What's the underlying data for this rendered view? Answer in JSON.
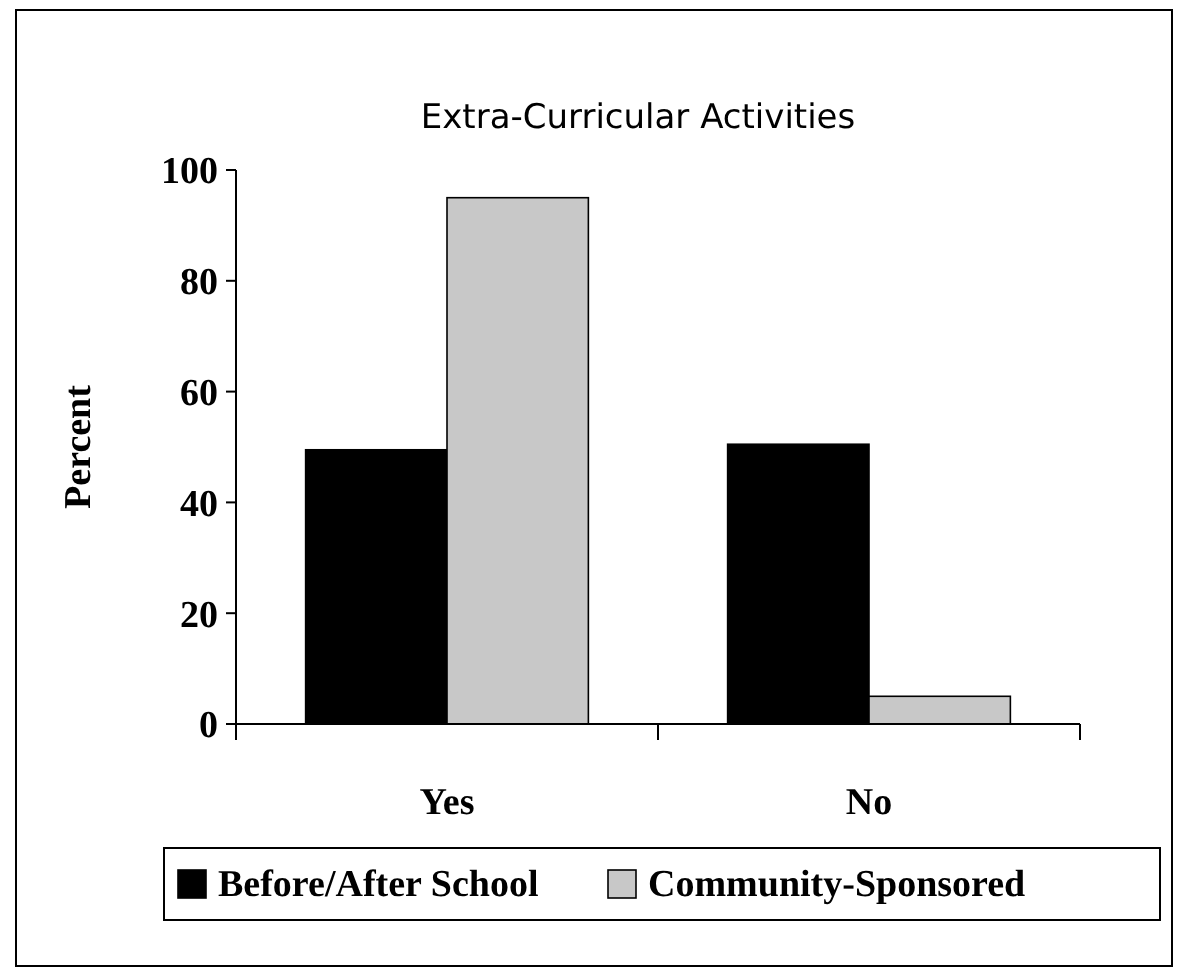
{
  "chart_data": {
    "type": "bar",
    "title": "Extra-Curricular Activities",
    "ylabel": "Percent",
    "categories": [
      "Yes",
      "No"
    ],
    "series": [
      {
        "name": "Before/After School",
        "color": "#000000",
        "values": [
          49.5,
          50.5
        ]
      },
      {
        "name": "Community-Sponsored",
        "color": "#c8c8c8",
        "values": [
          95,
          5
        ]
      }
    ],
    "ylim": [
      0,
      100
    ],
    "yticks": [
      0,
      20,
      40,
      60,
      80,
      100
    ],
    "grid": false,
    "legend": "bottom"
  }
}
